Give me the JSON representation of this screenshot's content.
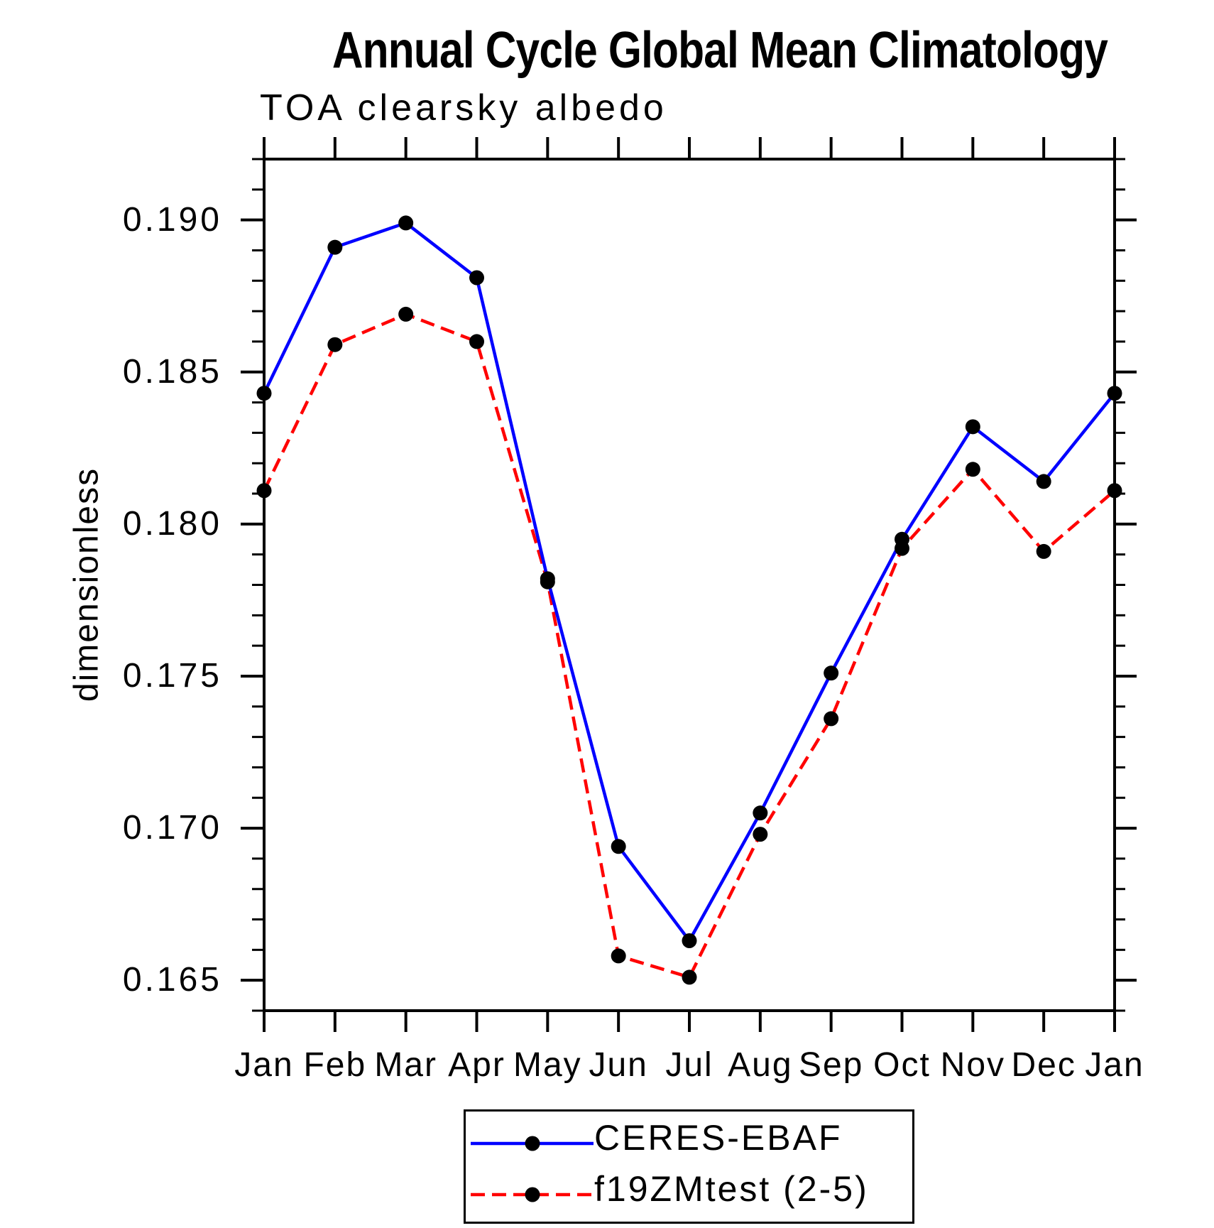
{
  "title": "Annual Cycle Global Mean Climatology",
  "subtitle": "TOA clearsky albedo",
  "y_axis_label": "dimensionless",
  "chart_data": {
    "type": "line",
    "title": "Annual Cycle Global Mean Climatology",
    "subtitle": "TOA clearsky albedo",
    "xlabel": "",
    "ylabel": "dimensionless",
    "x_tick_labels": [
      "Jan",
      "Feb",
      "Mar",
      "Apr",
      "May",
      "Jun",
      "Jul",
      "Aug",
      "Sep",
      "Oct",
      "Nov",
      "Dec",
      "Jan"
    ],
    "y_tick_labels": [
      "0.165",
      "0.170",
      "0.175",
      "0.180",
      "0.185",
      "0.190"
    ],
    "ylim": [
      0.164,
      0.192
    ],
    "y_major_step": 0.005,
    "y_minor_step": 0.001,
    "grid": false,
    "frame": "box-with-outward-ticks",
    "legend_position": "bottom-center",
    "colors": {
      "axis": "#000000",
      "marker": "#000000",
      "series1": "#0000ff",
      "series2": "#ff0000"
    },
    "series": [
      {
        "name": "CERES-EBAF",
        "color": "#0000ff",
        "line_style": "solid",
        "marker": "filled-circle",
        "marker_color": "#000000",
        "values": [
          0.1843,
          0.1891,
          0.1899,
          0.1881,
          0.1782,
          0.1694,
          0.1663,
          0.1705,
          0.1751,
          0.1795,
          0.1832,
          0.1814,
          0.1843
        ]
      },
      {
        "name": "f19ZMtest (2-5)",
        "color": "#ff0000",
        "line_style": "dashed",
        "marker": "filled-circle",
        "marker_color": "#000000",
        "values": [
          0.1811,
          0.1859,
          0.1869,
          0.186,
          0.1781,
          0.1658,
          0.1651,
          0.1698,
          0.1736,
          0.1792,
          0.1818,
          0.1791,
          0.1811
        ]
      }
    ]
  }
}
